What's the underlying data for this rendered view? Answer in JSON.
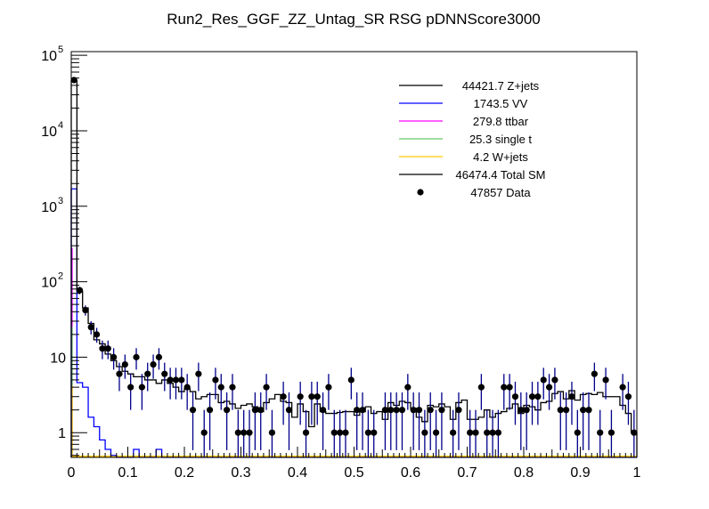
{
  "chart_data": {
    "type": "bar",
    "title": "Run2_Res_GGF_ZZ_Untag_SR RSG  pDNNScore3000",
    "xlabel": "",
    "ylabel": "",
    "xlim": [
      0,
      1
    ],
    "ylim": [
      0.47,
      112000
    ],
    "yscale": "log",
    "grid": false,
    "legend_position": "top-right",
    "x_tick_labels": [
      "0",
      "0.1",
      "0.2",
      "0.3",
      "0.4",
      "0.5",
      "0.6",
      "0.7",
      "0.8",
      "0.9",
      "1"
    ],
    "y_tick_labels": [
      {
        "base": "1",
        "exp": ""
      },
      {
        "base": "10",
        "exp": ""
      },
      {
        "base": "10",
        "exp": "2"
      },
      {
        "base": "10",
        "exp": "3"
      },
      {
        "base": "10",
        "exp": "4"
      },
      {
        "base": "10",
        "exp": "5"
      }
    ],
    "n_bins": 100,
    "legend": [
      {
        "label": "44421.7 Z+jets",
        "color": "#000000",
        "style": "line"
      },
      {
        "label": "1743.5 VV",
        "color": "#0000ff",
        "style": "line"
      },
      {
        "label": "279.8 ttbar",
        "color": "#ff00ff",
        "style": "line"
      },
      {
        "label": "25.3 single t",
        "color": "#66cc66",
        "style": "line"
      },
      {
        "label": "4.2 W+jets",
        "color": "#ffcc00",
        "style": "line"
      },
      {
        "label": "46474.4 Total SM",
        "color": "#000000",
        "style": "line"
      },
      {
        "label": "47857 Data",
        "color": "#000000",
        "style": "marker"
      }
    ],
    "series": [
      {
        "name": "Total SM",
        "color": "#000000",
        "values": [
          46474,
          75,
          45,
          28,
          17,
          15,
          11,
          9,
          7.5,
          6.5,
          6,
          5.5,
          5.5,
          5,
          5,
          4.5,
          5,
          4.5,
          4,
          3.5,
          3.8,
          3.5,
          2.8,
          3,
          3.2,
          3.2,
          2.5,
          2.6,
          2.4,
          2.1,
          2.3,
          2.4,
          2.2,
          1.9,
          2.5,
          2.8,
          3.2,
          2.6,
          2.5,
          1.6,
          2.4,
          1.9,
          1.2,
          2.4,
          1.9,
          1.8,
          1.8,
          1.85,
          1.9,
          1.9,
          1.7,
          1.9,
          2.2,
          1.8,
          1.9,
          1.5,
          2.5,
          2.3,
          2.6,
          2.5,
          2.1,
          1.6,
          1.4,
          2.3,
          2.2,
          2.4,
          2.2,
          1.5,
          2.5,
          2.7,
          1.5,
          1.5,
          1.6,
          2.0,
          1.6,
          1.8,
          1.9,
          2.1,
          2.4,
          1.8,
          2.3,
          2.2,
          2.0,
          2.5,
          2.6,
          3.3,
          3.5,
          2.8,
          3.6,
          2.7,
          3.2,
          3.3,
          3.2,
          3.4,
          3.0,
          3.0,
          3.0,
          2.3,
          1.8,
          1.0
        ]
      },
      {
        "name": "VV",
        "color": "#0000ff",
        "values": [
          1700,
          4.6,
          4.0,
          1.6,
          1.2,
          0.8,
          0.6,
          0.5,
          0,
          0,
          0,
          0.6,
          0,
          0,
          0,
          0.6,
          0,
          0,
          0,
          0,
          0,
          0,
          0,
          0,
          0,
          0,
          0,
          0,
          0,
          0,
          0,
          0,
          0,
          0,
          0,
          0,
          0,
          0,
          0,
          0,
          0,
          0,
          0,
          0,
          0,
          0,
          0,
          0,
          0,
          0,
          0,
          0,
          0,
          0,
          0,
          0,
          0,
          0,
          0,
          0,
          0,
          0,
          0,
          0,
          0,
          0,
          0,
          0,
          0,
          0,
          0,
          0,
          0,
          0,
          0,
          0,
          0,
          0,
          0,
          0,
          0,
          0,
          0,
          0,
          0,
          0,
          0,
          0,
          0,
          0,
          0,
          0,
          0,
          0,
          0,
          0,
          0,
          0,
          0,
          0
        ]
      },
      {
        "name": "ttbar",
        "color": "#ff00ff",
        "values": [
          279.8
        ]
      },
      {
        "name": "single t",
        "color": "#66cc66",
        "values": [
          25.3
        ]
      },
      {
        "name": "W+jets",
        "color": "#ffcc00",
        "values": [
          4.2
        ]
      },
      {
        "name": "Data",
        "color": "#000000",
        "values": [
          47000,
          77,
          42,
          25,
          20,
          13,
          13,
          10,
          6,
          8,
          4,
          10,
          4,
          6,
          8,
          10,
          6,
          5,
          5,
          5,
          4,
          2,
          6,
          1,
          2,
          5,
          4,
          2,
          4,
          1,
          1,
          1,
          2,
          2,
          4,
          1,
          0,
          3,
          2,
          0,
          3,
          1,
          3,
          3,
          2,
          4,
          1,
          1,
          1,
          5,
          2,
          2,
          1,
          1,
          0,
          2,
          2,
          2,
          2,
          4,
          2,
          2,
          1,
          2,
          1,
          2,
          0,
          1,
          2,
          0,
          1,
          1,
          4,
          1,
          1,
          1,
          4,
          4,
          3,
          2,
          2,
          3,
          3,
          5,
          4,
          5,
          2,
          2,
          3,
          1,
          2,
          2,
          6,
          1,
          5,
          1,
          0,
          4,
          3,
          1
        ]
      }
    ]
  }
}
